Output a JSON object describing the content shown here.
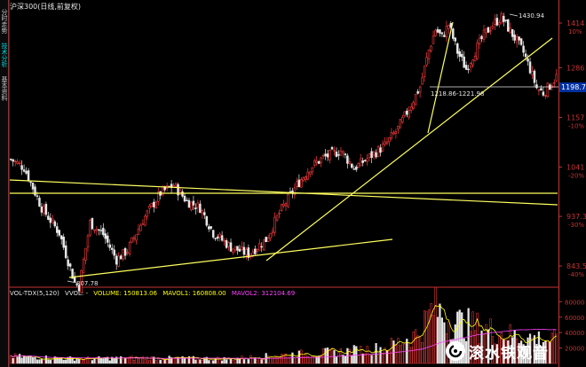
{
  "header": {
    "title": "沪深300(日线,前复权)"
  },
  "sidebar": {
    "tabs": [
      {
        "label": "分时走势"
      },
      {
        "label": "技术分析"
      },
      {
        "label": "基本资料"
      }
    ]
  },
  "price_axis": {
    "labels": [
      {
        "price": "1414",
        "pct": "10%"
      },
      {
        "price": "1286",
        "pct": ""
      },
      {
        "price": "1157",
        "pct": "-10%"
      },
      {
        "price": "1041",
        "pct": "-20%"
      },
      {
        "price": "937.3",
        "pct": "-30%"
      },
      {
        "price": "843.5",
        "pct": "-40%"
      }
    ],
    "current_price": "1198.7"
  },
  "volume_axis": {
    "labels": [
      "80000",
      "60000",
      "40000",
      "20000"
    ]
  },
  "annotations": {
    "high": "1430.94",
    "low": "807.78",
    "range": "1218.86-1221.98"
  },
  "indicator": {
    "name": "VOL-TDX(5,120)",
    "vvol": "VVOL: -",
    "volume": "VOLUME: 150813.06",
    "mavol1": "MAVOL1: 160808.00",
    "mavol2": "MAVOL2: 312104.69"
  },
  "watermark": {
    "text": "滚水铁观音"
  },
  "colors": {
    "up": "#ff3c3c",
    "down": "#e6e6e6",
    "trendline": "#ffff60",
    "axis": "#c83232",
    "volume_label": "#ffff00",
    "mavol1": "#ffff00",
    "mavol2": "#ff44ff",
    "current_price_box": "#0030a0"
  },
  "chart_data": {
    "type": "candlestick",
    "x_unit": "trading day",
    "y_range": [
      807.78,
      1430.94
    ],
    "control_points": [
      [
        0,
        1058
      ],
      [
        6,
        1040
      ],
      [
        14,
        955
      ],
      [
        22,
        905
      ],
      [
        29,
        815
      ],
      [
        31,
        807.78
      ],
      [
        36,
        925
      ],
      [
        42,
        902
      ],
      [
        48,
        855
      ],
      [
        53,
        872
      ],
      [
        60,
        930
      ],
      [
        68,
        985
      ],
      [
        74,
        1002
      ],
      [
        80,
        968
      ],
      [
        86,
        955
      ],
      [
        92,
        905
      ],
      [
        100,
        878
      ],
      [
        108,
        865
      ],
      [
        116,
        892
      ],
      [
        122,
        944
      ],
      [
        130,
        1002
      ],
      [
        136,
        1040
      ],
      [
        142,
        1062
      ],
      [
        150,
        1078
      ],
      [
        156,
        1038
      ],
      [
        162,
        1060
      ],
      [
        170,
        1090
      ],
      [
        176,
        1130
      ],
      [
        182,
        1190
      ],
      [
        186,
        1235
      ],
      [
        190,
        1335
      ],
      [
        193,
        1395
      ],
      [
        196,
        1372
      ],
      [
        199,
        1410
      ],
      [
        203,
        1330
      ],
      [
        207,
        1282
      ],
      [
        211,
        1332
      ],
      [
        215,
        1378
      ],
      [
        219,
        1410
      ],
      [
        223,
        1430.94
      ],
      [
        226,
        1400
      ],
      [
        230,
        1360
      ],
      [
        233,
        1328
      ],
      [
        236,
        1282
      ],
      [
        239,
        1232
      ],
      [
        242,
        1218.86
      ],
      [
        245,
        1238
      ],
      [
        248,
        1262
      ]
    ],
    "volume_profile": [
      [
        0,
        9000
      ],
      [
        30,
        6000
      ],
      [
        60,
        7000
      ],
      [
        100,
        6000
      ],
      [
        130,
        12000
      ],
      [
        150,
        15000
      ],
      [
        170,
        20000
      ],
      [
        185,
        38000
      ],
      [
        192,
        72000
      ],
      [
        200,
        55000
      ],
      [
        215,
        45000
      ],
      [
        230,
        35000
      ],
      [
        248,
        30000
      ]
    ],
    "volume_ylim": [
      0,
      85000
    ]
  }
}
